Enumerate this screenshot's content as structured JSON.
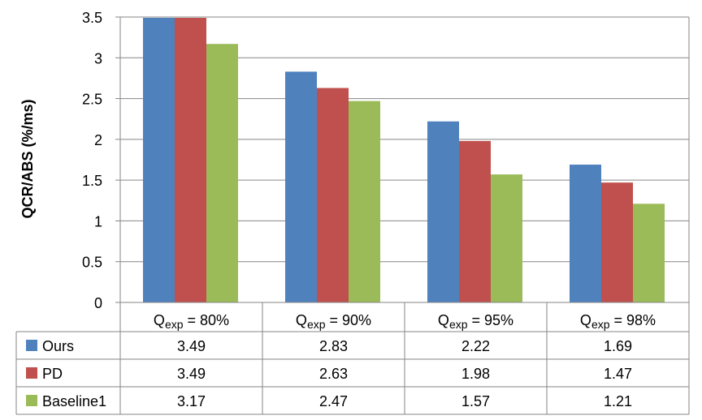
{
  "chart_data": {
    "type": "bar",
    "title": "",
    "xlabel": "",
    "ylabel": "QCR/ABS (%/ms)",
    "ylim": [
      0,
      3.5
    ],
    "yticks": [
      "0",
      "0.5",
      "1",
      "1.5",
      "2",
      "2.5",
      "3",
      "3.5"
    ],
    "grid": true,
    "legend": "data-table",
    "categories": [
      {
        "main": "Q",
        "sub": "exp",
        "rest": " = 80%"
      },
      {
        "main": "Q",
        "sub": "exp",
        "rest": " = 90%"
      },
      {
        "main": "Q",
        "sub": "exp",
        "rest": "  = 95%"
      },
      {
        "main": "Q",
        "sub": "exp",
        "rest": " = 98%"
      }
    ],
    "series": [
      {
        "name": "Ours",
        "color": "#4F81BD",
        "values": [
          3.49,
          2.83,
          2.22,
          1.69
        ],
        "labels": [
          "3.49",
          "2.83",
          "2.22",
          "1.69"
        ]
      },
      {
        "name": "PD",
        "color": "#C0504D",
        "values": [
          3.49,
          2.63,
          1.98,
          1.47
        ],
        "labels": [
          "3.49",
          "2.63",
          "1.98",
          "1.47"
        ]
      },
      {
        "name": "Baseline1",
        "color": "#9BBB59",
        "values": [
          3.17,
          2.47,
          1.57,
          1.21
        ],
        "labels": [
          "3.17",
          "2.47",
          "1.57",
          "1.21"
        ]
      }
    ]
  }
}
